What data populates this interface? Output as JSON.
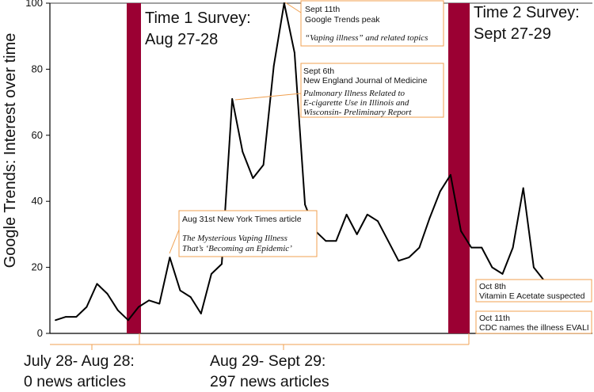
{
  "chart_data": {
    "type": "line",
    "title": "",
    "xlabel": "",
    "ylabel": "Google Trends: Interest over time",
    "ylim": [
      0,
      100
    ],
    "yticks": [
      0,
      20,
      40,
      60,
      80,
      100
    ],
    "grid": false,
    "series": [
      {
        "values": [
          4,
          5,
          5,
          8,
          15,
          12,
          7,
          4,
          8,
          10,
          9,
          23,
          13,
          11,
          6,
          18,
          21,
          71,
          55,
          47,
          51,
          81,
          100,
          85,
          39,
          31,
          28,
          28,
          36,
          30,
          36,
          34,
          28,
          22,
          23,
          26,
          35,
          43,
          48,
          31,
          26,
          26,
          20,
          18,
          26,
          44,
          20,
          16
        ],
        "color": "#000000"
      }
    ],
    "surveys": [
      {
        "title_line1": "Time 1 Survey:",
        "title_line2": "Aug 27-28",
        "color": "#9b0033"
      },
      {
        "title_line1": "Time 2 Survey:",
        "title_line2": "Sept 27-29",
        "color": "#9b0033"
      }
    ],
    "annotations": [
      {
        "id": "peak",
        "line1": "Sept 11th",
        "line2": "Google Trends peak",
        "italic": [
          "“Vaping illness” and related topics"
        ]
      },
      {
        "id": "nejm",
        "line1": "Sept 6th",
        "line2": "New England Journal of Medicine",
        "italic": [
          "Pulmonary Illness Related to",
          "E-cigarette Use in Illinois and",
          "Wisconsin- Preliminary Report"
        ]
      },
      {
        "id": "nyt",
        "line1": "Aug 31st New York Times article",
        "italic": [
          "The Mysterious Vaping Illness",
          "That’s ‘Becoming an Epidemic’"
        ]
      },
      {
        "id": "vitE",
        "line1": "Oct 8th",
        "line2": "Vitamin E Acetate suspected"
      },
      {
        "id": "evali",
        "line1": "Oct 11th",
        "line2": "CDC names the illness EVALI"
      }
    ],
    "periods": [
      {
        "line1": "July 28- Aug 28:",
        "line2": "0 news articles"
      },
      {
        "line1": "Aug 29- Sept 29:",
        "line2": "297 news articles"
      }
    ],
    "accent_color": "#f0a050"
  }
}
